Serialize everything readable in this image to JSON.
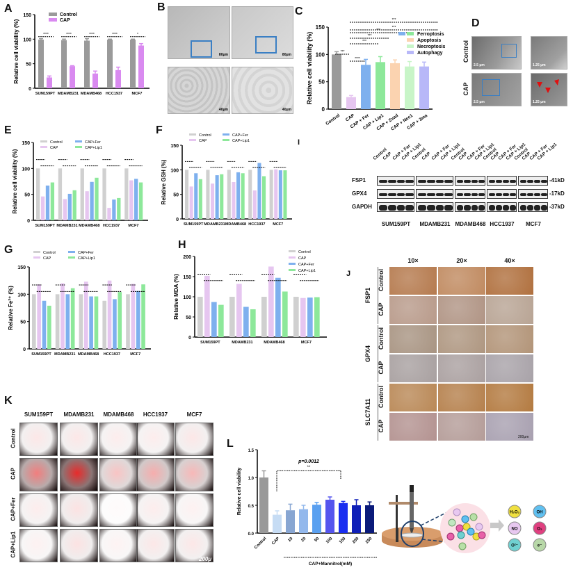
{
  "panels": {
    "A": "A",
    "B": "B",
    "C": "C",
    "D": "D",
    "E": "E",
    "F": "F",
    "G": "G",
    "H": "H",
    "I": "I",
    "J": "J",
    "K": "K",
    "L": "L"
  },
  "colors": {
    "control_dark": "#9a9a9a",
    "cap_magenta": "#d98af0",
    "control_light": "#d0d0d0",
    "cap_light": "#e6c6f0",
    "fer_blue": "#7eb0ee",
    "lip1_green": "#8de89a",
    "apoptosis_peach": "#fbd3b0",
    "necroptosis_mint": "#c8f5c8",
    "autophagy_lavender": "#b8b8f8"
  },
  "panelB": {
    "scales": [
      "80μm",
      "80μm",
      "40μm",
      "40μm"
    ]
  },
  "panelD": {
    "rows": [
      "Control",
      "CAP"
    ],
    "scales": [
      "2.5 μm",
      "1.25 μm",
      "2.5 μm",
      "1.25 μm"
    ]
  },
  "panelI": {
    "lanes": [
      "Control",
      "CAP",
      "CAP + Fer",
      "CAP + Lip1"
    ],
    "proteins": [
      {
        "name": "FSP1",
        "size": "-41kD"
      },
      {
        "name": "GPX4",
        "size": "-17kD"
      },
      {
        "name": "GAPDH",
        "size": "-37kD"
      }
    ],
    "cell_lines": [
      "SUM159PT",
      "MDAMB231",
      "MDAMB468",
      "HCC1937",
      "MCF7"
    ]
  },
  "panelJ": {
    "magnifications": [
      "10×",
      "20×",
      "40×"
    ],
    "markers": [
      "FSP1",
      "GPX4",
      "SLC7A11"
    ],
    "rows": [
      "Control",
      "CAP"
    ],
    "scale": "200μm"
  },
  "panelK": {
    "cell_lines": [
      "SUM159PT",
      "MDAMB231",
      "MDAMB468",
      "HCC1937",
      "MCF7"
    ],
    "rows": [
      "Control",
      "CAP",
      "CAP+Fer",
      "CAP+Lip1"
    ],
    "scale": "200μ"
  },
  "panelL_diagram": {
    "species": [
      "H₂O₂",
      "OH",
      "NO",
      "O₃",
      "O²⁻",
      "e⁻"
    ]
  },
  "chart_data": [
    {
      "id": "A",
      "type": "bar",
      "title": "",
      "xlabel": "",
      "ylabel": "Relative cell viability (%)",
      "ylim": [
        0,
        150
      ],
      "yticks": [
        0,
        50,
        100,
        150
      ],
      "categories": [
        "SUM159PT",
        "MDAMB231",
        "MDAMB468",
        "HCC1937",
        "MCF7"
      ],
      "series": [
        {
          "name": "Control",
          "values": [
            99,
            98,
            97,
            99,
            99
          ],
          "errors": [
            2,
            2,
            4,
            1,
            1
          ]
        },
        {
          "name": "CAP",
          "values": [
            22,
            45,
            30,
            37,
            87
          ],
          "errors": [
            3,
            1,
            5,
            6,
            4
          ]
        }
      ],
      "significance": [
        "****",
        "****",
        "****",
        "****",
        "*"
      ],
      "legend": [
        "Control",
        "CAP"
      ],
      "legend_position": "top-left"
    },
    {
      "id": "C",
      "type": "bar",
      "title": "",
      "xlabel": "",
      "ylabel": "Relative cell viability (%)",
      "ylim": [
        0,
        150
      ],
      "yticks": [
        0,
        50,
        100,
        150
      ],
      "categories": [
        "Control",
        "CAP",
        "CAP + Fer",
        "CAP + Lip1",
        "CAP + Zvad",
        "CAP + Nec1",
        "CAP + 3ma"
      ],
      "values": [
        100,
        22,
        81,
        86,
        84,
        78,
        78
      ],
      "errors": [
        5,
        3,
        10,
        10,
        6,
        9,
        8
      ],
      "significance": [
        "****",
        "***",
        "***",
        "***",
        "***",
        "***"
      ],
      "legend": [
        "Ferroptosis",
        "Apoptosis",
        "Necroptosis",
        "Autophagy"
      ],
      "legend_position": "top-right"
    },
    {
      "id": "E",
      "type": "bar",
      "title": "",
      "xlabel": "",
      "ylabel": "Relative cell viability (%)",
      "ylim": [
        0,
        150
      ],
      "yticks": [
        0,
        50,
        100,
        150
      ],
      "categories": [
        "SUM159PT",
        "MDAMB231",
        "MDAMB468",
        "HCC1937",
        "MCF7"
      ],
      "series": [
        {
          "name": "Control",
          "values": [
            100,
            100,
            100,
            100,
            100
          ]
        },
        {
          "name": "CAP",
          "values": [
            46,
            41,
            56,
            24,
            77
          ]
        },
        {
          "name": "CAP+Fer",
          "values": [
            67,
            51,
            74,
            40,
            80
          ]
        },
        {
          "name": "CAP+Lip1",
          "values": [
            73,
            58,
            82,
            43,
            73
          ]
        }
      ],
      "legend": [
        "Control",
        "CAP",
        "CAP+Fer",
        "CAP+Lip1"
      ],
      "legend_position": "top"
    },
    {
      "id": "F",
      "type": "bar",
      "title": "",
      "xlabel": "",
      "ylabel": "Relative GSH (%)",
      "ylim": [
        0,
        150
      ],
      "yticks": [
        0,
        50,
        100,
        150
      ],
      "categories": [
        "SUM159PT",
        "MDAMB231",
        "MDAMB468",
        "HCC1937",
        "MCF7"
      ],
      "series": [
        {
          "name": "Control",
          "values": [
            100,
            100,
            100,
            100,
            100
          ]
        },
        {
          "name": "CAP",
          "values": [
            66,
            72,
            75,
            58,
            101
          ]
        },
        {
          "name": "CAP+Fer",
          "values": [
            93,
            89,
            95,
            114,
            99
          ]
        },
        {
          "name": "CAP+Lip1",
          "values": [
            81,
            91,
            93,
            87,
            99
          ]
        }
      ],
      "legend": [
        "Control",
        "CAP",
        "CAP+Fer",
        "CAP+Lip1"
      ],
      "legend_position": "top"
    },
    {
      "id": "G",
      "type": "bar",
      "title": "",
      "xlabel": "",
      "ylabel": "Relative Fe²⁺ (%)",
      "ylim": [
        0,
        150
      ],
      "yticks": [
        0,
        50,
        100,
        150
      ],
      "categories": [
        "SUM159PT",
        "MDAMB231",
        "MDAMB468",
        "HCC1937",
        "MCF7"
      ],
      "series": [
        {
          "name": "Control",
          "values": [
            100,
            100,
            100,
            88,
            100
          ]
        },
        {
          "name": "CAP",
          "values": [
            118,
            120,
            123,
            125,
            119
          ]
        },
        {
          "name": "CAP+Fer",
          "values": [
            88,
            100,
            96,
            91,
            106
          ]
        },
        {
          "name": "CAP+Lip1",
          "values": [
            79,
            111,
            96,
            104,
            118
          ]
        }
      ],
      "legend": [
        "Control",
        "CAP",
        "CAP+Fer",
        "CAP+Lip1"
      ],
      "legend_position": "top"
    },
    {
      "id": "H",
      "type": "bar",
      "title": "",
      "xlabel": "",
      "ylabel": "Relative MDA (%)",
      "ylim": [
        0,
        200
      ],
      "yticks": [
        0,
        50,
        100,
        150,
        200
      ],
      "categories": [
        "SUM159PT",
        "MDAMB231",
        "MDAMB468",
        "MCF7"
      ],
      "series": [
        {
          "name": "Control",
          "values": [
            100,
            100,
            100,
            100
          ]
        },
        {
          "name": "CAP",
          "values": [
            152,
            132,
            175,
            97
          ]
        },
        {
          "name": "CAP+Fer",
          "values": [
            87,
            75,
            147,
            98
          ]
        },
        {
          "name": "CAP+Lip1",
          "values": [
            80,
            69,
            113,
            99
          ]
        }
      ],
      "legend": [
        "Control",
        "CAP",
        "CAP+Fer",
        "CAP+Lip1"
      ],
      "legend_position": "top-right"
    },
    {
      "id": "L",
      "type": "bar",
      "title": "",
      "xlabel": "CAP+Mannitrol(mM)",
      "ylabel": "Relative cell viability",
      "ylim": [
        0,
        1.5
      ],
      "yticks": [
        0.0,
        0.5,
        1.0,
        1.5
      ],
      "categories": [
        "Control",
        "CAP",
        "10",
        "20",
        "50",
        "100",
        "150",
        "200",
        "250"
      ],
      "values": [
        1.0,
        0.33,
        0.41,
        0.43,
        0.51,
        0.6,
        0.54,
        0.5,
        0.5
      ],
      "errors": [
        0.12,
        0.07,
        0.11,
        0.07,
        0.04,
        0.05,
        0.03,
        0.1,
        0.06
      ],
      "annotation": "p=0.0012",
      "annotation_sig": "**",
      "colors": [
        "#999999",
        "#c6dcf4",
        "#88a6d2",
        "#93b8ec",
        "#5aa0f0",
        "#5555ee",
        "#1a2ef0",
        "#1020b8",
        "#0a1a7a"
      ]
    }
  ]
}
